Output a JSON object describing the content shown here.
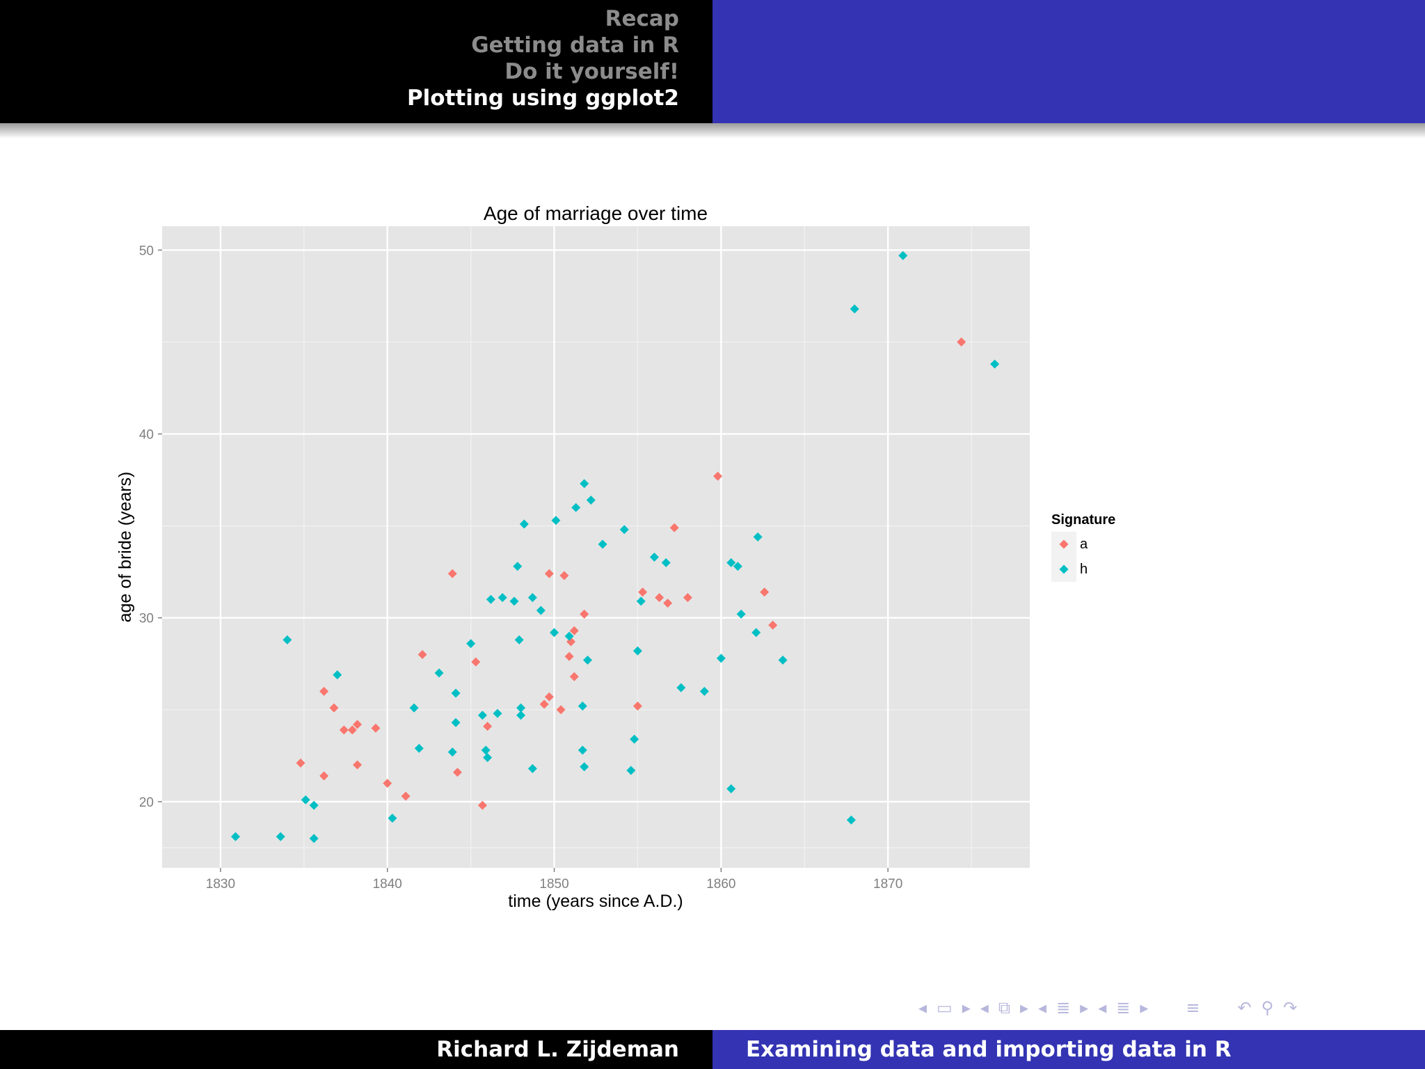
{
  "header": {
    "nav": [
      "Recap",
      "Getting data in R",
      "Do it yourself!",
      "Plotting using ggplot2"
    ],
    "active_index": 3
  },
  "footer": {
    "author": "Richard L. Zijdeman",
    "title": "Examining data and importing data in R"
  },
  "colors": {
    "a": "#f8766d",
    "h": "#00bfc4",
    "panel": "#e5e5e5",
    "header_blue": "#3333b3"
  },
  "nav_icons": [
    "arrow-left-icon",
    "frame-icon",
    "arrow-right-icon",
    "subsection-icon",
    "section-icon",
    "align-icon",
    "search-icon",
    "undo-icon"
  ],
  "chart_data": {
    "type": "scatter",
    "title": "Age of marriage over time",
    "xlabel": "time (years since A.D.)",
    "ylabel": "age of bride (years)",
    "xlim": [
      1826.5,
      1878.5
    ],
    "ylim": [
      16.4,
      51.3
    ],
    "x_ticks": [
      1830,
      1840,
      1850,
      1860,
      1870
    ],
    "y_ticks": [
      20,
      30,
      40,
      50
    ],
    "grid": true,
    "legend": {
      "title": "Signature",
      "position": "right",
      "entries": [
        "a",
        "h"
      ]
    },
    "series": [
      {
        "name": "a",
        "points": [
          [
            1834.8,
            22.1
          ],
          [
            1836.2,
            21.4
          ],
          [
            1836.2,
            26.0
          ],
          [
            1836.8,
            25.1
          ],
          [
            1837.4,
            23.9
          ],
          [
            1837.9,
            23.9
          ],
          [
            1838.2,
            24.2
          ],
          [
            1838.2,
            22.0
          ],
          [
            1839.3,
            24.0
          ],
          [
            1840.0,
            21.0
          ],
          [
            1841.1,
            20.3
          ],
          [
            1842.1,
            28.0
          ],
          [
            1843.9,
            32.4
          ],
          [
            1844.2,
            21.6
          ],
          [
            1845.3,
            27.6
          ],
          [
            1845.7,
            19.8
          ],
          [
            1846.0,
            24.1
          ],
          [
            1849.4,
            25.3
          ],
          [
            1849.7,
            25.7
          ],
          [
            1849.7,
            32.4
          ],
          [
            1850.4,
            25.0
          ],
          [
            1850.6,
            32.3
          ],
          [
            1850.9,
            27.9
          ],
          [
            1851.0,
            28.7
          ],
          [
            1851.2,
            29.3
          ],
          [
            1851.2,
            26.8
          ],
          [
            1851.8,
            30.2
          ],
          [
            1855.0,
            25.2
          ],
          [
            1855.3,
            31.4
          ],
          [
            1856.3,
            31.1
          ],
          [
            1856.8,
            30.8
          ],
          [
            1857.2,
            34.9
          ],
          [
            1858.0,
            31.1
          ],
          [
            1859.8,
            37.7
          ],
          [
            1862.6,
            31.4
          ],
          [
            1863.1,
            29.6
          ],
          [
            1874.4,
            45.0
          ]
        ]
      },
      {
        "name": "h",
        "points": [
          [
            1830.9,
            18.1
          ],
          [
            1833.6,
            18.1
          ],
          [
            1834.0,
            28.8
          ],
          [
            1835.1,
            20.1
          ],
          [
            1835.6,
            19.8
          ],
          [
            1835.6,
            18.0
          ],
          [
            1837.0,
            26.9
          ],
          [
            1840.3,
            19.1
          ],
          [
            1841.6,
            25.1
          ],
          [
            1841.9,
            22.9
          ],
          [
            1843.1,
            27.0
          ],
          [
            1843.9,
            22.7
          ],
          [
            1844.1,
            25.9
          ],
          [
            1844.1,
            24.3
          ],
          [
            1845.0,
            28.6
          ],
          [
            1845.7,
            24.7
          ],
          [
            1845.9,
            22.8
          ],
          [
            1846.0,
            22.4
          ],
          [
            1846.2,
            31.0
          ],
          [
            1846.6,
            24.8
          ],
          [
            1846.9,
            31.1
          ],
          [
            1847.6,
            30.9
          ],
          [
            1847.8,
            32.8
          ],
          [
            1847.9,
            28.8
          ],
          [
            1848.0,
            24.7
          ],
          [
            1848.0,
            25.1
          ],
          [
            1848.2,
            35.1
          ],
          [
            1848.7,
            21.8
          ],
          [
            1848.7,
            31.1
          ],
          [
            1849.2,
            30.4
          ],
          [
            1850.0,
            29.2
          ],
          [
            1850.1,
            35.3
          ],
          [
            1850.9,
            29.0
          ],
          [
            1851.3,
            36.0
          ],
          [
            1851.7,
            25.2
          ],
          [
            1851.7,
            22.8
          ],
          [
            1851.8,
            21.9
          ],
          [
            1851.8,
            37.3
          ],
          [
            1852.0,
            27.7
          ],
          [
            1852.2,
            36.4
          ],
          [
            1852.9,
            34.0
          ],
          [
            1854.2,
            34.8
          ],
          [
            1854.6,
            21.7
          ],
          [
            1854.8,
            23.4
          ],
          [
            1855.0,
            28.2
          ],
          [
            1855.2,
            30.9
          ],
          [
            1856.0,
            33.3
          ],
          [
            1856.7,
            33.0
          ],
          [
            1857.6,
            26.2
          ],
          [
            1859.0,
            26.0
          ],
          [
            1860.0,
            27.8
          ],
          [
            1860.6,
            33.0
          ],
          [
            1860.6,
            20.7
          ],
          [
            1861.0,
            32.8
          ],
          [
            1861.2,
            30.2
          ],
          [
            1862.1,
            29.2
          ],
          [
            1862.2,
            34.4
          ],
          [
            1863.7,
            27.7
          ],
          [
            1867.8,
            19.0
          ],
          [
            1868.0,
            46.8
          ],
          [
            1870.9,
            49.7
          ],
          [
            1876.4,
            43.8
          ]
        ]
      }
    ]
  }
}
